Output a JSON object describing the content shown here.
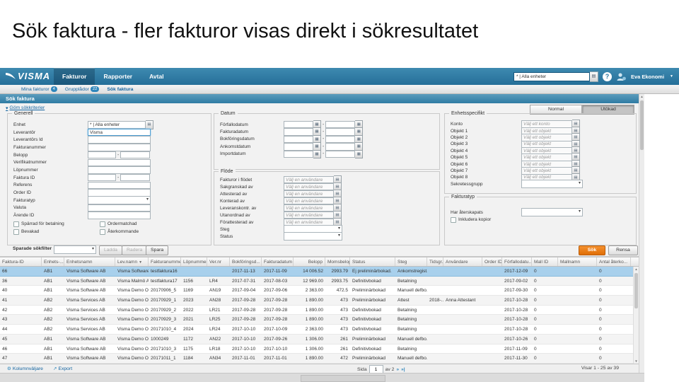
{
  "slide": {
    "title": "Sök faktura - fler fakturor visas direkt i sökresultatet"
  },
  "header": {
    "logo_text": "VISMA",
    "tabs": [
      {
        "label": "Fakturor",
        "active": true
      },
      {
        "label": "Rapporter",
        "active": false
      },
      {
        "label": "Avtal",
        "active": false
      }
    ],
    "enhet_filter_value": "* | Alla enheter",
    "help_label": "?",
    "user_name": "Eva Ekonomi"
  },
  "subnav": {
    "items": [
      {
        "label": "Mina fakturor",
        "badge": "4",
        "active": false
      },
      {
        "label": "Grupplådor",
        "badge": "22",
        "active": false
      },
      {
        "label": "Sök faktura",
        "badge": "",
        "active": true
      }
    ]
  },
  "page": {
    "section_title": "Sök faktura",
    "toggle_criteria": "Göm sökkriterier",
    "view_buttons": {
      "normal": "Normal",
      "extended": "Utökad",
      "selected": "extended"
    }
  },
  "form": {
    "generell": {
      "legend": "Generell",
      "fields": [
        {
          "label": "Enhet",
          "type": "picker",
          "value": "* | Alla enheter"
        },
        {
          "label": "Leverantör",
          "type": "text",
          "value": "Visma",
          "focused": true
        },
        {
          "label": "Leverantörs Id",
          "type": "text",
          "value": ""
        },
        {
          "label": "Fakturanummer",
          "type": "text",
          "value": ""
        },
        {
          "label": "Belopp",
          "type": "range"
        },
        {
          "label": "Verifikatnummer",
          "type": "text",
          "value": ""
        },
        {
          "label": "Löpnummer",
          "type": "text",
          "value": ""
        },
        {
          "label": "Faktura ID",
          "type": "range"
        },
        {
          "label": "Referens",
          "type": "text",
          "value": ""
        },
        {
          "label": "Order ID",
          "type": "text",
          "value": ""
        },
        {
          "label": "Fakturatyp",
          "type": "select"
        },
        {
          "label": "Valuta",
          "type": "text",
          "value": ""
        },
        {
          "label": "Ärende ID",
          "type": "text",
          "value": ""
        }
      ],
      "checkbox_rows": [
        [
          "Spärrad för betalning",
          "Ordermatchad"
        ],
        [
          "Bevakad",
          "Återkommande"
        ]
      ]
    },
    "datum": {
      "legend": "Datum",
      "fields": [
        "Förfallodatum",
        "Fakturadatum",
        "Bokföringsdatum",
        "Ankomstdatum",
        "Importdatum"
      ]
    },
    "flode": {
      "legend": "Flöde",
      "user_placeholder": "Välj en användare",
      "user_fields": [
        "Fakturor i flödet",
        "Sakgranskad av",
        "Attesterad av",
        "Konterad av",
        "Leveranskontr. av",
        "Utanordnad av",
        "Förattesterad av"
      ],
      "select_fields": [
        "Steg",
        "Status"
      ]
    },
    "enhetsspecifikt": {
      "legend": "Enhetsspecifikt",
      "konto_placeholder": "Välj ett konto",
      "objekt_placeholder": "Välj ett objekt",
      "fields": [
        "Konto",
        "Objekt 1",
        "Objekt 2",
        "Objekt 3",
        "Objekt 4",
        "Objekt 5",
        "Objekt 6",
        "Objekt 7",
        "Objekt 8"
      ],
      "select_field": "Sekretessgrupp"
    },
    "fakturatyp": {
      "legend": "Fakturatyp",
      "select_label": "Har återskapats",
      "checkbox_label": "Inkludera kopior"
    },
    "saved_filters": {
      "label": "Sparade sökfilter",
      "load": "Ladda",
      "delete": "Radera",
      "save": "Spara"
    },
    "actions": {
      "search": "Sök",
      "clear": "Rensa"
    }
  },
  "table": {
    "columns": [
      "Faktura-ID",
      "Enhets-...",
      "Enhetsnamn",
      "Lev.namn",
      "Fakturanummer",
      "Löpnummer",
      "Ver.nr",
      "Bokföringsd...",
      "Fakturadatum",
      "Belopp",
      "Momsbelopp",
      "Status",
      "Steg",
      "Tidsgr...",
      "Användare",
      "Order ID",
      "Förfallodatu...",
      "Mall ID",
      "Mallnamn",
      "Antal återko..."
    ],
    "sort_column": "Lev.namn",
    "selected_row": 0,
    "rows": [
      [
        "66",
        "AB1",
        "Visma Software AB",
        "Visma Software AB",
        "testfaktura16",
        "",
        "",
        "2017-11-13",
        "2017-11-09",
        "14 006.52",
        "2993.79",
        "Ej preliminärbokad.",
        "Ankomstregist...",
        "",
        "",
        "",
        "2017-12-09",
        "0",
        "",
        "0"
      ],
      [
        "36",
        "AB1",
        "Visma Software AB",
        "Visma Malmö AB",
        "testfaktura17",
        "1156",
        "LR4",
        "2017-07-31",
        "2017-08-03",
        "12 969.00",
        "2993.75",
        "Definitivbokad",
        "Betalning",
        "",
        "",
        "",
        "2017-09-02",
        "0",
        "",
        "0"
      ],
      [
        "40",
        "AB1",
        "Visma Software AB",
        "Visma Demo Oliver",
        "20170906_5",
        "1169",
        "AN19",
        "2017-09-04",
        "2017-09-06",
        "2 363.00",
        "472.5",
        "Preliminärbokad",
        "Manuell defbo...",
        "",
        "",
        "",
        "2017-09-30",
        "0",
        "",
        "0"
      ],
      [
        "41",
        "AB2",
        "Visma Services AB",
        "Visma Demo Oliver",
        "20170929_1",
        "2023",
        "AN28",
        "2017-09-28",
        "2017-09-28",
        "1 890.00",
        "473",
        "Preliminärbokad",
        "Attest",
        "2018-...",
        "Anna Attestant",
        "",
        "2017-10-28",
        "0",
        "",
        "0"
      ],
      [
        "42",
        "AB2",
        "Visma Services AB",
        "Visma Demo Oliver",
        "20170929_2",
        "2022",
        "LR21",
        "2017-09-28",
        "2017-09-28",
        "1 890.00",
        "473",
        "Definitivbokad",
        "Betalning",
        "",
        "",
        "",
        "2017-10-28",
        "0",
        "",
        "0"
      ],
      [
        "43",
        "AB2",
        "Visma Services AB",
        "Visma Demo Oliver",
        "20170929_3",
        "2021",
        "LR25",
        "2017-09-28",
        "2017-09-28",
        "1 890.00",
        "473",
        "Definitivbokad",
        "Betalning",
        "",
        "",
        "",
        "2017-10-28",
        "0",
        "",
        "0"
      ],
      [
        "44",
        "AB2",
        "Visma Services AB",
        "Visma Demo Oliver",
        "20171010_4",
        "2024",
        "LR24",
        "2017-10-10",
        "2017-10-09",
        "2 363.00",
        "473",
        "Definitivbokad",
        "Betalning",
        "",
        "",
        "",
        "2017-10-28",
        "0",
        "",
        "0"
      ],
      [
        "45",
        "AB1",
        "Visma Software AB",
        "Visma Demo Oliver",
        "1000249",
        "1172",
        "AN22",
        "2017-10-10",
        "2017-09-26",
        "1 306.00",
        "261",
        "Preliminärbokad",
        "Manuell defbo...",
        "",
        "",
        "",
        "2017-10-26",
        "0",
        "",
        "0"
      ],
      [
        "46",
        "AB1",
        "Visma Software AB",
        "Visma Demo Oliver",
        "20171010_3",
        "1175",
        "LR18",
        "2017-10-10",
        "2017-10-10",
        "1 306.00",
        "261",
        "Definitivbokad",
        "Betalning",
        "",
        "",
        "",
        "2017-11-09",
        "0",
        "",
        "0"
      ],
      [
        "47",
        "AB1",
        "Visma Software AB",
        "Visma Demo Oliver",
        "20171011_1",
        "1184",
        "AN34",
        "2017-11-01",
        "2017-11-01",
        "1 890.00",
        "472",
        "Preliminärbokad",
        "Manuell defbo...",
        "",
        "",
        "",
        "2017-11-30",
        "0",
        "",
        "0"
      ]
    ]
  },
  "pagination": {
    "page_word": "Sida",
    "page_value": "1",
    "of_text": "av 2",
    "showing_text": "Visar 1 - 25 av 39"
  },
  "footer": {
    "column_chooser": "Kolumnväljare",
    "export_label": "Export"
  },
  "icons": {
    "dropdown": "▾",
    "calendar": "▦",
    "picker": "▤",
    "sort_desc": "▼",
    "collapse": "▾",
    "page_next": "»",
    "page_last": "»|",
    "column_chooser": "⚙",
    "export": "↗",
    "scroll_up": "▲",
    "scroll_down": "▼",
    "range_dash": "-",
    "user_caret": "▼"
  }
}
